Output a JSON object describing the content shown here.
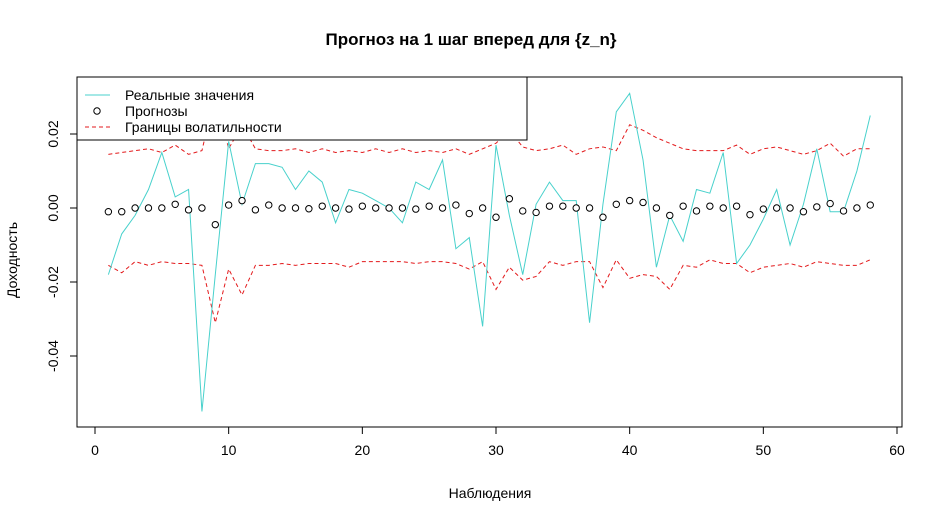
{
  "chart_data": {
    "type": "line",
    "title": "Прогноз на 1 шаг вперед для {z_n}",
    "xlabel": "Наблюдения",
    "ylabel": "Доходность",
    "xlim": [
      0,
      60
    ],
    "ylim": [
      -0.055,
      0.032
    ],
    "x_ticks": [
      0,
      10,
      20,
      30,
      40,
      50,
      60
    ],
    "y_ticks": [
      -0.04,
      -0.02,
      0.0,
      0.02
    ],
    "y_tick_labels": [
      "-0.04",
      "-0.02",
      "0.00",
      "0.02"
    ],
    "legend_position": "top-left",
    "series": [
      {
        "name": "Реальные значения",
        "style": "line",
        "color": "#48D1CC",
        "x": [
          1,
          2,
          3,
          4,
          5,
          6,
          7,
          8,
          9,
          10,
          11,
          12,
          13,
          14,
          15,
          16,
          17,
          18,
          19,
          20,
          21,
          22,
          23,
          24,
          25,
          26,
          27,
          28,
          29,
          30,
          31,
          32,
          33,
          34,
          35,
          36,
          37,
          38,
          39,
          40,
          41,
          42,
          43,
          44,
          45,
          46,
          47,
          48,
          49,
          50,
          51,
          52,
          53,
          54,
          55,
          56,
          57,
          58
        ],
        "values": [
          -0.018,
          -0.007,
          -0.002,
          0.005,
          0.015,
          0.003,
          0.005,
          -0.055,
          -0.018,
          0.018,
          0.001,
          0.012,
          0.012,
          0.011,
          0.005,
          0.01,
          0.007,
          -0.004,
          0.005,
          0.004,
          0.002,
          0.0,
          -0.004,
          0.007,
          0.005,
          0.013,
          -0.011,
          -0.008,
          -0.032,
          0.017,
          -0.002,
          -0.018,
          0.001,
          0.007,
          0.002,
          0.002,
          -0.031,
          0.001,
          0.026,
          0.031,
          0.013,
          -0.016,
          -0.002,
          -0.009,
          0.005,
          0.004,
          0.015,
          -0.015,
          -0.01,
          -0.003,
          0.005,
          -0.01,
          0.001,
          0.016,
          -0.001,
          -0.001,
          0.01,
          0.025
        ]
      },
      {
        "name": "Прогнозы",
        "style": "points",
        "color": "#000000",
        "x": [
          1,
          2,
          3,
          4,
          5,
          6,
          7,
          8,
          9,
          10,
          11,
          12,
          13,
          14,
          15,
          16,
          17,
          18,
          19,
          20,
          21,
          22,
          23,
          24,
          25,
          26,
          27,
          28,
          29,
          30,
          31,
          32,
          33,
          34,
          35,
          36,
          37,
          38,
          39,
          40,
          41,
          42,
          43,
          44,
          45,
          46,
          47,
          48,
          49,
          50,
          51,
          52,
          53,
          54,
          55,
          56,
          57,
          58
        ],
        "values": [
          -0.001,
          -0.001,
          0.0,
          0.0,
          0.0,
          0.001,
          -0.0005,
          0.0,
          -0.0045,
          0.0008,
          0.002,
          -0.0005,
          0.0008,
          0.0,
          0.0,
          -0.0002,
          0.0005,
          0.0,
          -0.0003,
          0.0005,
          0.0,
          0.0,
          0.0,
          -0.0003,
          0.0005,
          0.0,
          0.0008,
          -0.0015,
          0.0,
          -0.0025,
          0.0025,
          -0.0008,
          -0.0012,
          0.0005,
          0.0005,
          0.0,
          0.0,
          -0.0025,
          0.001,
          0.002,
          0.0015,
          0.0,
          -0.002,
          0.0005,
          -0.0008,
          0.0005,
          0.0,
          0.0005,
          -0.0018,
          -0.0003,
          0.0,
          0.0,
          -0.001,
          0.0003,
          0.0012,
          -0.0008,
          0.0,
          0.0008
        ]
      },
      {
        "name": "Границы волатильности",
        "style": "dashed",
        "color": "#E31A1C",
        "x": [
          1,
          2,
          3,
          4,
          5,
          6,
          7,
          8,
          9,
          10,
          11,
          12,
          13,
          14,
          15,
          16,
          17,
          18,
          19,
          20,
          21,
          22,
          23,
          24,
          25,
          26,
          27,
          28,
          29,
          30,
          31,
          32,
          33,
          34,
          35,
          36,
          37,
          38,
          39,
          40,
          41,
          42,
          43,
          44,
          45,
          46,
          47,
          48,
          49,
          50,
          51,
          52,
          53,
          54,
          55,
          56,
          57,
          58
        ],
        "upper": [
          0.0145,
          0.015,
          0.0155,
          0.016,
          0.015,
          0.017,
          0.0145,
          0.0155,
          0.031,
          0.016,
          0.0225,
          0.016,
          0.0155,
          0.0155,
          0.016,
          0.015,
          0.016,
          0.015,
          0.0155,
          0.015,
          0.016,
          0.015,
          0.016,
          0.015,
          0.0155,
          0.015,
          0.016,
          0.0145,
          0.016,
          0.0175,
          0.021,
          0.0165,
          0.0155,
          0.016,
          0.017,
          0.0145,
          0.016,
          0.0165,
          0.0155,
          0.0225,
          0.021,
          0.019,
          0.0175,
          0.016,
          0.0155,
          0.0155,
          0.0155,
          0.017,
          0.0145,
          0.016,
          0.0165,
          0.0155,
          0.0145,
          0.0155,
          0.0175,
          0.014,
          0.016,
          0.016
        ],
        "lower": [
          -0.0155,
          -0.0175,
          -0.0145,
          -0.0155,
          -0.0145,
          -0.015,
          -0.015,
          -0.0155,
          -0.031,
          -0.0165,
          -0.0235,
          -0.0155,
          -0.0155,
          -0.015,
          -0.0155,
          -0.015,
          -0.015,
          -0.015,
          -0.016,
          -0.0145,
          -0.0145,
          -0.0145,
          -0.0145,
          -0.015,
          -0.0145,
          -0.0145,
          -0.015,
          -0.0165,
          -0.0145,
          -0.022,
          -0.016,
          -0.0195,
          -0.0185,
          -0.0145,
          -0.0155,
          -0.0145,
          -0.0145,
          -0.0215,
          -0.014,
          -0.019,
          -0.018,
          -0.0185,
          -0.022,
          -0.0155,
          -0.016,
          -0.014,
          -0.015,
          -0.015,
          -0.0175,
          -0.016,
          -0.0155,
          -0.015,
          -0.016,
          -0.0145,
          -0.015,
          -0.0155,
          -0.0155,
          -0.014
        ]
      }
    ]
  }
}
